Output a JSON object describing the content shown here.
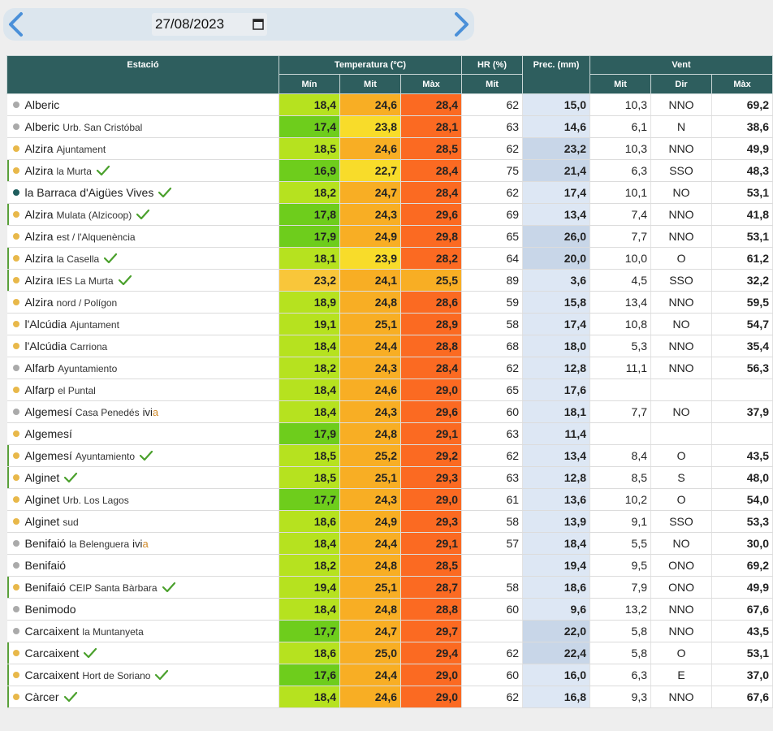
{
  "date": {
    "value": "27/08/2023"
  },
  "table": {
    "headers": {
      "station": "Estació",
      "temperature": "Temperatura (ºC)",
      "hr": "HR (%)",
      "prec": "Prec. (mm)",
      "wind": "Vent",
      "min": "Mín",
      "mit": "Mit",
      "max": "Màx",
      "hr_mit": "Mit",
      "w_mit": "Mit",
      "w_dir": "Dir",
      "w_max": "Màx"
    },
    "rows": [
      {
        "name": "Alberic",
        "sub": "",
        "dot": "#aaaaaa",
        "bar": false,
        "check": false,
        "ivia": false,
        "min": "18,4",
        "mit": "24,6",
        "max": "28,4",
        "hr": "62",
        "prec": "15,0",
        "wmit": "10,3",
        "dir": "NNO",
        "wmax": "69,2"
      },
      {
        "name": "Alberic",
        "sub": "Urb. San Cristóbal",
        "dot": "#aaaaaa",
        "bar": false,
        "check": false,
        "ivia": false,
        "min": "17,4",
        "mit": "23,8",
        "max": "28,1",
        "hr": "63",
        "prec": "14,6",
        "wmit": "6,1",
        "dir": "N",
        "wmax": "38,6"
      },
      {
        "name": "Alzira",
        "sub": "Ajuntament",
        "dot": "#e8b84a",
        "bar": false,
        "check": false,
        "ivia": false,
        "min": "18,5",
        "mit": "24,6",
        "max": "28,5",
        "hr": "62",
        "prec": "23,2",
        "wmit": "10,3",
        "dir": "NNO",
        "wmax": "49,9"
      },
      {
        "name": "Alzira",
        "sub": "la Murta",
        "dot": "#e8b84a",
        "bar": true,
        "check": true,
        "ivia": false,
        "min": "16,9",
        "mit": "22,7",
        "max": "28,4",
        "hr": "75",
        "prec": "21,4",
        "wmit": "6,3",
        "dir": "SSO",
        "wmax": "48,3"
      },
      {
        "name": "la Barraca d'Aigües Vives",
        "sub": "",
        "dot": "#1f5e5e",
        "bar": false,
        "check": true,
        "ivia": false,
        "min": "18,2",
        "mit": "24,7",
        "max": "28,4",
        "hr": "62",
        "prec": "17,4",
        "wmit": "10,1",
        "dir": "NO",
        "wmax": "53,1"
      },
      {
        "name": "Alzira",
        "sub": "Mulata (Alzicoop)",
        "dot": "#e8b84a",
        "bar": true,
        "check": true,
        "ivia": false,
        "min": "17,8",
        "mit": "24,3",
        "max": "29,6",
        "hr": "69",
        "prec": "13,4",
        "wmit": "7,4",
        "dir": "NNO",
        "wmax": "41,8"
      },
      {
        "name": "Alzira",
        "sub": "est / l'Alquenència",
        "dot": "#e8b84a",
        "bar": false,
        "check": false,
        "ivia": false,
        "min": "17,9",
        "mit": "24,9",
        "max": "29,8",
        "hr": "65",
        "prec": "26,0",
        "wmit": "7,7",
        "dir": "NNO",
        "wmax": "53,1"
      },
      {
        "name": "Alzira",
        "sub": "la Casella",
        "dot": "#e8b84a",
        "bar": true,
        "check": true,
        "ivia": false,
        "min": "18,1",
        "mit": "23,9",
        "max": "28,2",
        "hr": "64",
        "prec": "20,0",
        "wmit": "10,0",
        "dir": "O",
        "wmax": "61,2"
      },
      {
        "name": "Alzira",
        "sub": "IES La Murta",
        "dot": "#e8b84a",
        "bar": true,
        "check": true,
        "ivia": false,
        "min": "23,2",
        "mit": "24,1",
        "max": "25,5",
        "hr": "89",
        "prec": "3,6",
        "wmit": "4,5",
        "dir": "SSO",
        "wmax": "32,2"
      },
      {
        "name": "Alzira",
        "sub": "nord / Polígon",
        "dot": "#e8b84a",
        "bar": false,
        "check": false,
        "ivia": false,
        "min": "18,9",
        "mit": "24,8",
        "max": "28,6",
        "hr": "59",
        "prec": "15,8",
        "wmit": "13,4",
        "dir": "NNO",
        "wmax": "59,5"
      },
      {
        "name": "l'Alcúdia",
        "sub": "Ajuntament",
        "dot": "#e8b84a",
        "bar": false,
        "check": false,
        "ivia": false,
        "min": "19,1",
        "mit": "25,1",
        "max": "28,9",
        "hr": "58",
        "prec": "17,4",
        "wmit": "10,8",
        "dir": "NO",
        "wmax": "54,7"
      },
      {
        "name": "l'Alcúdia",
        "sub": "Carriona",
        "dot": "#e8b84a",
        "bar": false,
        "check": false,
        "ivia": false,
        "min": "18,4",
        "mit": "24,4",
        "max": "28,8",
        "hr": "68",
        "prec": "18,0",
        "wmit": "5,3",
        "dir": "NNO",
        "wmax": "35,4"
      },
      {
        "name": "Alfarb",
        "sub": "Ayuntamiento",
        "dot": "#aaaaaa",
        "bar": false,
        "check": false,
        "ivia": false,
        "min": "18,2",
        "mit": "24,3",
        "max": "28,4",
        "hr": "62",
        "prec": "12,8",
        "wmit": "11,1",
        "dir": "NNO",
        "wmax": "56,3"
      },
      {
        "name": "Alfarp",
        "sub": "el Puntal",
        "dot": "#e8b84a",
        "bar": false,
        "check": false,
        "ivia": false,
        "min": "18,4",
        "mit": "24,6",
        "max": "29,0",
        "hr": "65",
        "prec": "17,6",
        "wmit": "",
        "dir": "",
        "wmax": ""
      },
      {
        "name": "Algemesí",
        "sub": "Casa Penedés",
        "dot": "#aaaaaa",
        "bar": false,
        "check": false,
        "ivia": true,
        "min": "18,4",
        "mit": "24,3",
        "max": "29,6",
        "hr": "60",
        "prec": "18,1",
        "wmit": "7,7",
        "dir": "NO",
        "wmax": "37,9"
      },
      {
        "name": "Algemesí",
        "sub": "",
        "dot": "#e8b84a",
        "bar": false,
        "check": false,
        "ivia": false,
        "min": "17,9",
        "mit": "24,8",
        "max": "29,1",
        "hr": "63",
        "prec": "11,4",
        "wmit": "",
        "dir": "",
        "wmax": ""
      },
      {
        "name": "Algemesí",
        "sub": "Ayuntamiento",
        "dot": "#e8b84a",
        "bar": true,
        "check": true,
        "ivia": false,
        "min": "18,5",
        "mit": "25,2",
        "max": "29,2",
        "hr": "62",
        "prec": "13,4",
        "wmit": "8,4",
        "dir": "O",
        "wmax": "43,5"
      },
      {
        "name": "Alginet",
        "sub": "",
        "dot": "#e8b84a",
        "bar": true,
        "check": true,
        "ivia": false,
        "min": "18,5",
        "mit": "25,1",
        "max": "29,3",
        "hr": "63",
        "prec": "12,8",
        "wmit": "8,5",
        "dir": "S",
        "wmax": "48,0"
      },
      {
        "name": "Alginet",
        "sub": "Urb. Los Lagos",
        "dot": "#e8b84a",
        "bar": false,
        "check": false,
        "ivia": false,
        "min": "17,7",
        "mit": "24,3",
        "max": "29,0",
        "hr": "61",
        "prec": "13,6",
        "wmit": "10,2",
        "dir": "O",
        "wmax": "54,0"
      },
      {
        "name": "Alginet",
        "sub": "sud",
        "dot": "#e8b84a",
        "bar": false,
        "check": false,
        "ivia": false,
        "min": "18,6",
        "mit": "24,9",
        "max": "29,3",
        "hr": "58",
        "prec": "13,9",
        "wmit": "9,1",
        "dir": "SSO",
        "wmax": "53,3"
      },
      {
        "name": "Benifaió",
        "sub": "la Belenguera",
        "dot": "#aaaaaa",
        "bar": false,
        "check": false,
        "ivia": true,
        "min": "18,4",
        "mit": "24,4",
        "max": "29,1",
        "hr": "57",
        "prec": "18,4",
        "wmit": "5,5",
        "dir": "NO",
        "wmax": "30,0"
      },
      {
        "name": "Benifaió",
        "sub": "",
        "dot": "#aaaaaa",
        "bar": false,
        "check": false,
        "ivia": false,
        "min": "18,2",
        "mit": "24,8",
        "max": "28,5",
        "hr": "",
        "prec": "19,4",
        "wmit": "9,5",
        "dir": "ONO",
        "wmax": "69,2"
      },
      {
        "name": "Benifaió",
        "sub": "CEIP Santa Bàrbara",
        "dot": "#e8b84a",
        "bar": true,
        "check": true,
        "ivia": false,
        "min": "19,4",
        "mit": "25,1",
        "max": "28,7",
        "hr": "58",
        "prec": "18,6",
        "wmit": "7,9",
        "dir": "ONO",
        "wmax": "49,9"
      },
      {
        "name": "Benimodo",
        "sub": "",
        "dot": "#aaaaaa",
        "bar": false,
        "check": false,
        "ivia": false,
        "min": "18,4",
        "mit": "24,8",
        "max": "28,8",
        "hr": "60",
        "prec": "9,6",
        "wmit": "13,2",
        "dir": "NNO",
        "wmax": "67,6"
      },
      {
        "name": "Carcaixent",
        "sub": "la Muntanyeta",
        "dot": "#aaaaaa",
        "bar": false,
        "check": false,
        "ivia": false,
        "min": "17,7",
        "mit": "24,7",
        "max": "29,7",
        "hr": "",
        "prec": "22,0",
        "wmit": "5,8",
        "dir": "NNO",
        "wmax": "43,5"
      },
      {
        "name": "Carcaixent",
        "sub": "",
        "dot": "#e8b84a",
        "bar": true,
        "check": true,
        "ivia": false,
        "min": "18,6",
        "mit": "25,0",
        "max": "29,4",
        "hr": "62",
        "prec": "22,4",
        "wmit": "5,8",
        "dir": "O",
        "wmax": "53,1"
      },
      {
        "name": "Carcaixent",
        "sub": "Hort de Soriano",
        "dot": "#e8b84a",
        "bar": true,
        "check": true,
        "ivia": false,
        "min": "17,6",
        "mit": "24,4",
        "max": "29,0",
        "hr": "60",
        "prec": "16,0",
        "wmit": "6,3",
        "dir": "E",
        "wmax": "37,0"
      },
      {
        "name": "Càrcer",
        "sub": "",
        "dot": "#e8b84a",
        "bar": true,
        "check": true,
        "ivia": false,
        "min": "18,4",
        "mit": "24,6",
        "max": "29,0",
        "hr": "62",
        "prec": "16,8",
        "wmit": "9,3",
        "dir": "NNO",
        "wmax": "67,6"
      }
    ]
  }
}
